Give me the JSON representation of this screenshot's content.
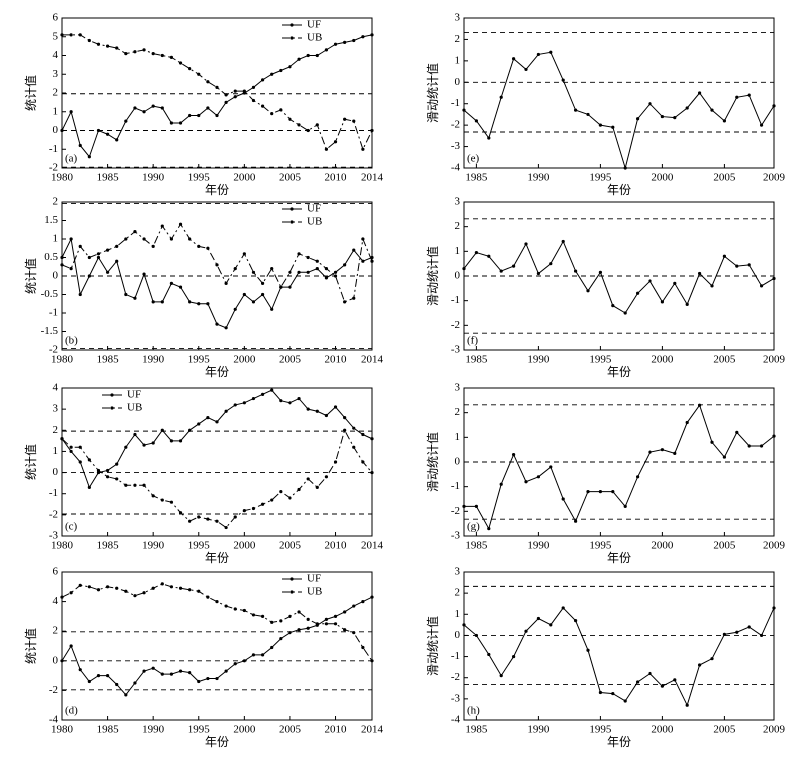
{
  "chart_data": [
    {
      "type": "line",
      "panel_label": "(a)",
      "xlabel": "年份",
      "ylabel": "统计值",
      "legend": "upper right",
      "x": [
        1980,
        1981,
        1982,
        1983,
        1984,
        1985,
        1986,
        1987,
        1988,
        1989,
        1990,
        1991,
        1992,
        1993,
        1994,
        1995,
        1996,
        1997,
        1998,
        1999,
        2000,
        2001,
        2002,
        2003,
        2004,
        2005,
        2006,
        2007,
        2008,
        2009,
        2010,
        2011,
        2012,
        2013,
        2014
      ],
      "xlim": [
        1980,
        2014
      ],
      "xticks": [
        1980,
        1985,
        1990,
        1995,
        2000,
        2005,
        2010,
        2014
      ],
      "ylim": [
        -2,
        6
      ],
      "yticks": [
        -2,
        -1,
        0,
        1,
        2,
        3,
        4,
        5,
        6
      ],
      "reference_lines": [
        1.96,
        0,
        -1.96
      ],
      "series": [
        {
          "name": "UF",
          "color": "#000000",
          "line_style": "solid",
          "values": [
            0,
            1.0,
            -0.8,
            -1.4,
            0,
            -0.2,
            -0.5,
            0.5,
            1.2,
            1.0,
            1.3,
            1.2,
            0.4,
            0.4,
            0.8,
            0.8,
            1.2,
            0.8,
            1.5,
            1.8,
            2.0,
            2.3,
            2.7,
            3.0,
            3.2,
            3.4,
            3.8,
            4.0,
            4.0,
            4.3,
            4.6,
            4.7,
            4.8,
            5.0,
            5.1
          ]
        },
        {
          "name": "UB",
          "color": "#000000",
          "line_style": "dashdot",
          "values": [
            5.1,
            5.1,
            5.1,
            4.8,
            4.6,
            4.5,
            4.4,
            4.1,
            4.2,
            4.3,
            4.1,
            4.0,
            3.9,
            3.6,
            3.3,
            3.0,
            2.6,
            2.3,
            1.9,
            2.1,
            2.1,
            1.6,
            1.3,
            0.9,
            1.1,
            0.6,
            0.3,
            0,
            0.3,
            -1.0,
            -0.6,
            0.6,
            0.5,
            -1.0,
            0
          ]
        }
      ]
    },
    {
      "type": "line",
      "panel_label": "(b)",
      "xlabel": "年份",
      "ylabel": "统计值",
      "legend": "upper right",
      "x": [
        1980,
        1981,
        1982,
        1983,
        1984,
        1985,
        1986,
        1987,
        1988,
        1989,
        1990,
        1991,
        1992,
        1993,
        1994,
        1995,
        1996,
        1997,
        1998,
        1999,
        2000,
        2001,
        2002,
        2003,
        2004,
        2005,
        2006,
        2007,
        2008,
        2009,
        2010,
        2011,
        2012,
        2013,
        2014
      ],
      "xlim": [
        1980,
        2014
      ],
      "xticks": [
        1980,
        1985,
        1990,
        1995,
        2000,
        2005,
        2010,
        2014
      ],
      "ylim": [
        -2,
        2
      ],
      "yticks": [
        -2,
        -1.5,
        -1,
        -0.5,
        0,
        0.5,
        1,
        1.5,
        2
      ],
      "reference_lines": [
        1.96,
        0,
        -1.96
      ],
      "series": [
        {
          "name": "UF",
          "color": "#000000",
          "line_style": "solid",
          "values": [
            0.5,
            1.0,
            -0.5,
            0,
            0.5,
            0.1,
            0.4,
            -0.5,
            -0.6,
            0.05,
            -0.7,
            -0.7,
            -0.2,
            -0.3,
            -0.7,
            -0.75,
            -0.75,
            -1.3,
            -1.4,
            -0.9,
            -0.5,
            -0.7,
            -0.5,
            -0.9,
            -0.3,
            -0.3,
            0.1,
            0.1,
            0.2,
            -0.05,
            0.1,
            0.3,
            0.7,
            0.4,
            0.5
          ]
        },
        {
          "name": "UB",
          "color": "#000000",
          "line_style": "dashdot",
          "values": [
            0.3,
            0.2,
            0.8,
            0.5,
            0.6,
            0.7,
            0.8,
            1.0,
            1.2,
            1.0,
            0.8,
            1.35,
            1.0,
            1.4,
            1.0,
            0.8,
            0.75,
            0.3,
            -0.2,
            0.2,
            0.6,
            0.1,
            -0.2,
            0.2,
            -0.3,
            0.1,
            0.6,
            0.5,
            0.4,
            0.2,
            0,
            -0.7,
            -0.6,
            1.0,
            0.4
          ]
        }
      ]
    },
    {
      "type": "line",
      "panel_label": "(c)",
      "xlabel": "年份",
      "ylabel": "统计值",
      "legend": "upper left",
      "x": [
        1980,
        1981,
        1982,
        1983,
        1984,
        1985,
        1986,
        1987,
        1988,
        1989,
        1990,
        1991,
        1992,
        1993,
        1994,
        1995,
        1996,
        1997,
        1998,
        1999,
        2000,
        2001,
        2002,
        2003,
        2004,
        2005,
        2006,
        2007,
        2008,
        2009,
        2010,
        2011,
        2012,
        2013,
        2014
      ],
      "xlim": [
        1980,
        2014
      ],
      "xticks": [
        1980,
        1985,
        1990,
        1995,
        2000,
        2005,
        2010,
        2014
      ],
      "ylim": [
        -3,
        4
      ],
      "yticks": [
        -3,
        -2,
        -1,
        0,
        1,
        2,
        3,
        4
      ],
      "reference_lines": [
        1.96,
        0,
        -1.96
      ],
      "series": [
        {
          "name": "UF",
          "color": "#000000",
          "line_style": "solid",
          "values": [
            1.6,
            1.0,
            0.5,
            -0.7,
            0,
            0.1,
            0.4,
            1.2,
            1.8,
            1.3,
            1.4,
            2.0,
            1.5,
            1.5,
            2.0,
            2.3,
            2.6,
            2.4,
            2.9,
            3.2,
            3.3,
            3.5,
            3.7,
            3.9,
            3.4,
            3.3,
            3.5,
            3.0,
            2.9,
            2.7,
            3.1,
            2.6,
            2.1,
            1.8,
            1.6
          ]
        },
        {
          "name": "UB",
          "color": "#000000",
          "line_style": "dashdot",
          "values": [
            1.6,
            1.2,
            1.2,
            0.6,
            0.1,
            -0.2,
            -0.3,
            -0.6,
            -0.6,
            -0.6,
            -1.1,
            -1.3,
            -1.4,
            -1.9,
            -2.3,
            -2.1,
            -2.2,
            -2.3,
            -2.6,
            -2.1,
            -1.8,
            -1.7,
            -1.5,
            -1.3,
            -0.9,
            -1.2,
            -0.8,
            -0.3,
            -0.7,
            -0.2,
            0.5,
            2.0,
            1.2,
            0.5,
            0
          ]
        }
      ]
    },
    {
      "type": "line",
      "panel_label": "(d)",
      "xlabel": "年份",
      "ylabel": "统计值",
      "legend": "upper right",
      "x": [
        1980,
        1981,
        1982,
        1983,
        1984,
        1985,
        1986,
        1987,
        1988,
        1989,
        1990,
        1991,
        1992,
        1993,
        1994,
        1995,
        1996,
        1997,
        1998,
        1999,
        2000,
        2001,
        2002,
        2003,
        2004,
        2005,
        2006,
        2007,
        2008,
        2009,
        2010,
        2011,
        2012,
        2013,
        2014
      ],
      "xlim": [
        1980,
        2014
      ],
      "xticks": [
        1980,
        1985,
        1990,
        1995,
        2000,
        2005,
        2010,
        2014
      ],
      "ylim": [
        -4,
        6
      ],
      "yticks": [
        -4,
        -2,
        0,
        2,
        4,
        6
      ],
      "reference_lines": [
        1.96,
        0,
        -1.96
      ],
      "series": [
        {
          "name": "UF",
          "color": "#000000",
          "line_style": "solid",
          "values": [
            0,
            1.0,
            -0.6,
            -1.4,
            -1.0,
            -1.0,
            -1.6,
            -2.3,
            -1.5,
            -0.7,
            -0.5,
            -0.9,
            -0.9,
            -0.7,
            -0.8,
            -1.4,
            -1.2,
            -1.2,
            -0.7,
            -0.2,
            0,
            0.4,
            0.4,
            0.9,
            1.5,
            1.9,
            2.1,
            2.2,
            2.4,
            2.8,
            3.0,
            3.3,
            3.7,
            4.0,
            4.3
          ]
        },
        {
          "name": "UB",
          "color": "#000000",
          "line_style": "dashdot",
          "values": [
            4.3,
            4.6,
            5.1,
            5.0,
            4.8,
            5.0,
            4.9,
            4.7,
            4.4,
            4.6,
            4.9,
            5.2,
            5.0,
            4.9,
            4.8,
            4.7,
            4.3,
            4.0,
            3.7,
            3.5,
            3.4,
            3.1,
            3.0,
            2.6,
            2.7,
            3.0,
            3.3,
            2.8,
            2.5,
            2.5,
            2.5,
            2.1,
            1.9,
            0.9,
            0
          ]
        }
      ]
    },
    {
      "type": "line",
      "panel_label": "(e)",
      "xlabel": "年份",
      "ylabel": "滑动统计值",
      "x": [
        1984,
        1985,
        1986,
        1987,
        1988,
        1989,
        1990,
        1991,
        1992,
        1993,
        1994,
        1995,
        1996,
        1997,
        1998,
        1999,
        2000,
        2001,
        2002,
        2003,
        2004,
        2005,
        2006,
        2007,
        2008,
        2009
      ],
      "xlim": [
        1984,
        2009
      ],
      "xticks": [
        1985,
        1990,
        1995,
        2000,
        2005,
        2009
      ],
      "ylim": [
        -4,
        3
      ],
      "yticks": [
        -4,
        -3,
        -2,
        -1,
        0,
        1,
        2,
        3
      ],
      "reference_lines": [
        2.32,
        0,
        -2.32
      ],
      "series": [
        {
          "color": "#000000",
          "line_style": "solid",
          "values": [
            -1.3,
            -1.8,
            -2.6,
            -0.7,
            1.1,
            0.6,
            1.3,
            1.4,
            0.1,
            -1.3,
            -1.5,
            -2.0,
            -2.1,
            -4.0,
            -1.7,
            -1.0,
            -1.6,
            -1.65,
            -1.2,
            -0.5,
            -1.3,
            -1.8,
            -0.7,
            -0.6,
            -2.0,
            -1.1
          ]
        }
      ]
    },
    {
      "type": "line",
      "panel_label": "(f)",
      "xlabel": "年份",
      "ylabel": "滑动统计值",
      "x": [
        1984,
        1985,
        1986,
        1987,
        1988,
        1989,
        1990,
        1991,
        1992,
        1993,
        1994,
        1995,
        1996,
        1997,
        1998,
        1999,
        2000,
        2001,
        2002,
        2003,
        2004,
        2005,
        2006,
        2007,
        2008,
        2009
      ],
      "xlim": [
        1984,
        2009
      ],
      "xticks": [
        1985,
        1990,
        1995,
        2000,
        2005,
        2009
      ],
      "ylim": [
        -3,
        3
      ],
      "yticks": [
        -3,
        -2,
        -1,
        0,
        1,
        2,
        3
      ],
      "reference_lines": [
        2.32,
        0,
        -2.32
      ],
      "series": [
        {
          "color": "#000000",
          "line_style": "solid",
          "values": [
            0.3,
            0.95,
            0.8,
            0.2,
            0.4,
            1.3,
            0.1,
            0.5,
            1.4,
            0.2,
            -0.6,
            0.15,
            -1.2,
            -1.5,
            -0.7,
            -0.2,
            -1.05,
            -0.3,
            -1.15,
            0.1,
            -0.4,
            0.8,
            0.4,
            0.45,
            -0.4,
            -0.1
          ]
        }
      ]
    },
    {
      "type": "line",
      "panel_label": "(g)",
      "xlabel": "年份",
      "ylabel": "滑动统计值",
      "x": [
        1984,
        1985,
        1986,
        1987,
        1988,
        1989,
        1990,
        1991,
        1992,
        1993,
        1994,
        1995,
        1996,
        1997,
        1998,
        1999,
        2000,
        2001,
        2002,
        2003,
        2004,
        2005,
        2006,
        2007,
        2008,
        2009
      ],
      "xlim": [
        1984,
        2009
      ],
      "xticks": [
        1985,
        1990,
        1995,
        2000,
        2005,
        2009
      ],
      "ylim": [
        -3,
        3
      ],
      "yticks": [
        -3,
        -2,
        -1,
        0,
        1,
        2,
        3
      ],
      "reference_lines": [
        2.32,
        0,
        -2.32
      ],
      "series": [
        {
          "color": "#000000",
          "line_style": "solid",
          "values": [
            -1.8,
            -1.8,
            -2.7,
            -0.9,
            0.3,
            -0.8,
            -0.6,
            -0.2,
            -1.5,
            -2.4,
            -1.2,
            -1.2,
            -1.2,
            -1.8,
            -0.6,
            0.4,
            0.5,
            0.35,
            1.6,
            2.3,
            0.8,
            0.2,
            1.2,
            0.65,
            0.65,
            1.05
          ]
        }
      ]
    },
    {
      "type": "line",
      "panel_label": "(h)",
      "xlabel": "年份",
      "ylabel": "滑动统计值",
      "x": [
        1984,
        1985,
        1986,
        1987,
        1988,
        1989,
        1990,
        1991,
        1992,
        1993,
        1994,
        1995,
        1996,
        1997,
        1998,
        1999,
        2000,
        2001,
        2002,
        2003,
        2004,
        2005,
        2006,
        2007,
        2008,
        2009
      ],
      "xlim": [
        1984,
        2009
      ],
      "xticks": [
        1985,
        1990,
        1995,
        2000,
        2005,
        2009
      ],
      "ylim": [
        -4,
        3
      ],
      "yticks": [
        -4,
        -3,
        -2,
        -1,
        0,
        1,
        2,
        3
      ],
      "reference_lines": [
        2.32,
        0,
        -2.32
      ],
      "series": [
        {
          "color": "#000000",
          "line_style": "solid",
          "values": [
            0.5,
            0,
            -0.9,
            -1.9,
            -1.0,
            0.2,
            0.8,
            0.5,
            1.3,
            0.7,
            -0.7,
            -2.7,
            -2.75,
            -3.1,
            -2.2,
            -1.8,
            -2.4,
            -2.1,
            -3.3,
            -1.4,
            -1.1,
            0.05,
            0.15,
            0.4,
            0,
            1.3
          ]
        }
      ]
    }
  ]
}
